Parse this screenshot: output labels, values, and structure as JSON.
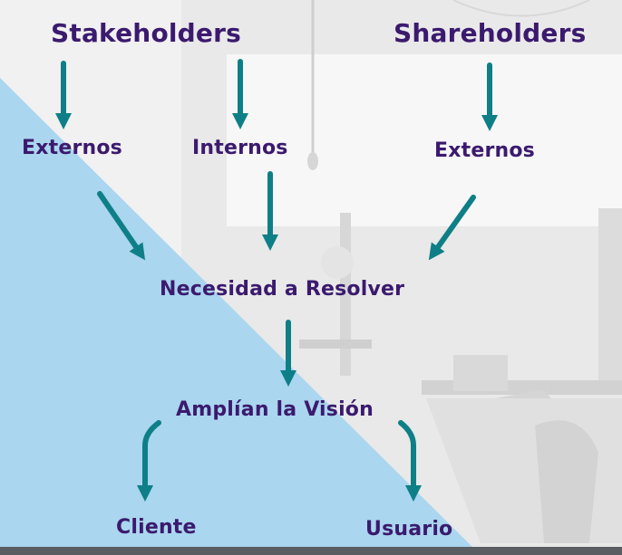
{
  "diagram": {
    "stakeholders": "Stakeholders",
    "shareholders": "Shareholders",
    "externos_left": "Externos",
    "internos": "Internos",
    "externos_right": "Externos",
    "necesidad": "Necesidad a Resolver",
    "amplian": "Amplían la Visión",
    "cliente": "Cliente",
    "usuario": "Usuario"
  },
  "colors": {
    "text": "#3b1a6e",
    "arrow": "#0e7f87",
    "triangle": "#aad6ef",
    "background": "#f1f1f1"
  }
}
